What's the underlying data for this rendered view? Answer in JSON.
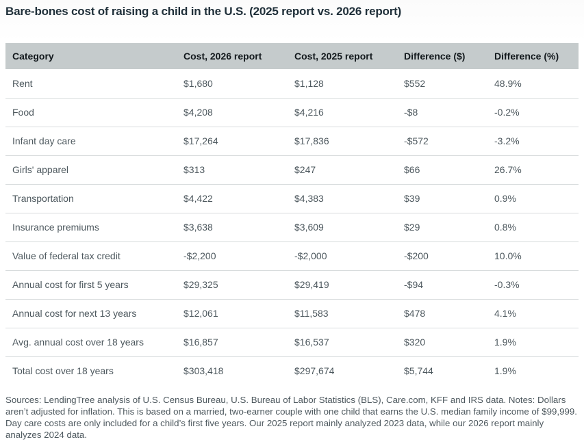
{
  "title": "Bare-bones cost of raising a child in the U.S. (2025 report vs. 2026 report)",
  "chart_data": {
    "type": "table",
    "title": "Bare-bones cost of raising a child in the U.S. (2025 report vs. 2026 report)",
    "columns": [
      "Category",
      "Cost, 2026 report",
      "Cost, 2025 report",
      "Difference ($)",
      "Difference (%)"
    ],
    "rows": [
      [
        "Rent",
        "$1,680",
        "$1,128",
        "$552",
        "48.9%"
      ],
      [
        "Food",
        "$4,208",
        "$4,216",
        "-$8",
        "-0.2%"
      ],
      [
        "Infant day care",
        "$17,264",
        "$17,836",
        "-$572",
        "-3.2%"
      ],
      [
        "Girls' apparel",
        "$313",
        "$247",
        "$66",
        "26.7%"
      ],
      [
        "Transportation",
        "$4,422",
        "$4,383",
        "$39",
        "0.9%"
      ],
      [
        "Insurance premiums",
        "$3,638",
        "$3,609",
        "$29",
        "0.8%"
      ],
      [
        "Value of federal tax credit",
        "-$2,200",
        "-$2,000",
        "-$200",
        "10.0%"
      ],
      [
        "Annual cost for first 5 years",
        "$29,325",
        "$29,419",
        "-$94",
        "-0.3%"
      ],
      [
        "Annual cost for next 13 years",
        "$12,061",
        "$11,583",
        "$478",
        "4.1%"
      ],
      [
        "Avg. annual cost over 18 years",
        "$16,857",
        "$16,537",
        "$320",
        "1.9%"
      ],
      [
        "Total cost over 18 years",
        "$303,418",
        "$297,674",
        "$5,744",
        "1.9%"
      ]
    ]
  },
  "footnote": "Sources: LendingTree analysis of U.S. Census Bureau, U.S. Bureau of Labor Statistics (BLS), Care.com, KFF and IRS data. Notes: Dollars aren’t adjusted for inflation. This is based on a married, two-earner couple with one child that earns the U.S. median family income of $99,999. Day care costs are only included for a child’s first five years. Our 2025 report mainly analyzed 2023 data, while our 2026 report mainly analyzes 2024 data.",
  "colors": {
    "header_background": "#c5cbcc",
    "header_text": "#13191d",
    "body_text": "#4d585e",
    "row_divider": "#d7dbdc",
    "title_text": "#20303a",
    "page_background": "#ffffff"
  }
}
